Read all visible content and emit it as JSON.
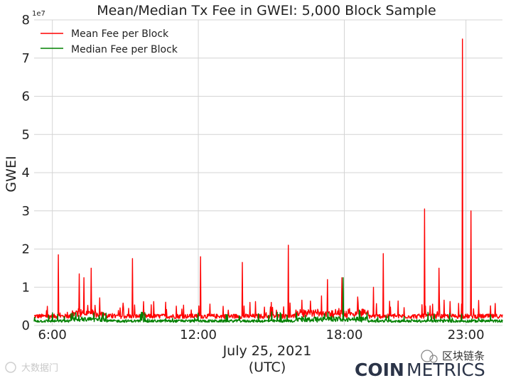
{
  "chart_data": {
    "type": "line",
    "title": "Mean/Median Tx Fee in GWEI: 5,000 Block Sample",
    "xlabel_line1": "July 25, 2021",
    "xlabel_line2": "(UTC)",
    "ylabel": "GWEI",
    "y_multiplier_label": "1e7",
    "ylim": [
      0,
      8
    ],
    "y_ticks": [
      0,
      1,
      2,
      3,
      4,
      5,
      6,
      7,
      8
    ],
    "y_tick_labels": [
      "0",
      "1",
      "2",
      "3",
      "4",
      "5",
      "6",
      "7",
      "8"
    ],
    "xlim_hours": [
      5.25,
      24.5
    ],
    "x_ticks_hours": [
      6,
      12,
      18,
      23
    ],
    "x_tick_labels": [
      "6:00",
      "12:00",
      "18:00",
      "23:00"
    ],
    "grid": true,
    "legend_position": "top-left",
    "series": [
      {
        "name": "Mean Fee per Block",
        "color": "#ff0000",
        "baseline": 0.18,
        "noise": 0.12,
        "spikes": [
          {
            "hour": 6.25,
            "value": 1.85
          },
          {
            "hour": 7.1,
            "value": 1.35
          },
          {
            "hour": 7.3,
            "value": 1.25
          },
          {
            "hour": 7.6,
            "value": 1.5
          },
          {
            "hour": 9.3,
            "value": 1.75
          },
          {
            "hour": 12.1,
            "value": 1.8
          },
          {
            "hour": 13.8,
            "value": 1.65
          },
          {
            "hour": 15.7,
            "value": 2.1
          },
          {
            "hour": 17.3,
            "value": 1.2
          },
          {
            "hour": 17.9,
            "value": 1.25
          },
          {
            "hour": 19.2,
            "value": 1.0
          },
          {
            "hour": 19.6,
            "value": 1.88
          },
          {
            "hour": 21.3,
            "value": 3.05
          },
          {
            "hour": 21.9,
            "value": 1.5
          },
          {
            "hour": 22.85,
            "value": 7.5
          },
          {
            "hour": 23.2,
            "value": 3.0
          }
        ]
      },
      {
        "name": "Median Fee per Block",
        "color": "#008000",
        "baseline": 0.08,
        "noise": 0.07,
        "spikes": [
          {
            "hour": 17.95,
            "value": 1.25
          }
        ]
      }
    ]
  },
  "watermarks": {
    "bottom_left": "大数据门",
    "bottom_right": "区块链条"
  },
  "brand": {
    "part1": "COIN",
    "part2": "METRICS"
  }
}
